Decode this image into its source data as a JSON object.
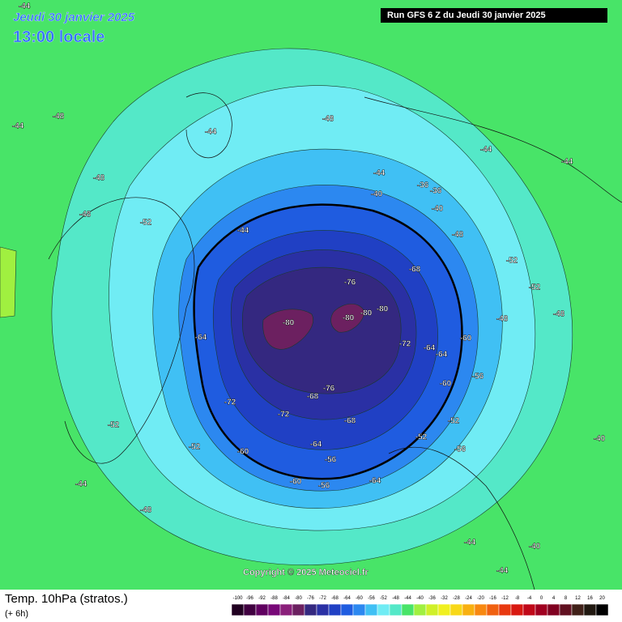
{
  "header": {
    "date": "Jeudi 30 janvier 2025",
    "time": "13:00 locale",
    "run": "Run GFS 6 Z du Jeudi 30 janvier 2025"
  },
  "copyright": "Copyright © 2025 Meteociel.fr",
  "footer": {
    "title": "Temp. 10hPa (stratos.)",
    "step": "(+ 6h)"
  },
  "contours": [
    -44,
    -48,
    -44,
    -48,
    -52,
    -48,
    -44,
    -44,
    -48,
    -44,
    -40,
    -36,
    -36,
    -40,
    -44,
    -44,
    -48,
    -52,
    -52,
    -48,
    -52,
    -56,
    -60,
    -56,
    -52,
    -64,
    -68,
    -76,
    -80,
    -80,
    -80,
    -80,
    -72,
    -64,
    -64,
    -60,
    -76,
    -72,
    -68,
    -60,
    -64,
    -56,
    -56,
    -60,
    -64,
    -52,
    -48,
    -44,
    -44,
    -40,
    -48,
    -44,
    -52,
    -40,
    -72,
    -68
  ],
  "legend": {
    "items": [
      {
        "value": -100,
        "color": "#200020"
      },
      {
        "value": -96,
        "color": "#400040"
      },
      {
        "value": -92,
        "color": "#600060"
      },
      {
        "value": -88,
        "color": "#780878"
      },
      {
        "value": -84,
        "color": "#8a1f7a"
      },
      {
        "value": -80,
        "color": "#6c2060"
      },
      {
        "value": -76,
        "color": "#342880"
      },
      {
        "value": -72,
        "color": "#2a30a4"
      },
      {
        "value": -68,
        "color": "#2040c4"
      },
      {
        "value": -64,
        "color": "#1f5ce0"
      },
      {
        "value": -60,
        "color": "#2c88f0"
      },
      {
        "value": -56,
        "color": "#40c0f4"
      },
      {
        "value": -52,
        "color": "#70ecf4"
      },
      {
        "value": -48,
        "color": "#54e8c8"
      },
      {
        "value": -44,
        "color": "#48e468"
      },
      {
        "value": -40,
        "color": "#a0f040"
      },
      {
        "value": -36,
        "color": "#d0f028"
      },
      {
        "value": -32,
        "color": "#f0f020"
      },
      {
        "value": -28,
        "color": "#f8d818"
      },
      {
        "value": -24,
        "color": "#f8b010"
      },
      {
        "value": -20,
        "color": "#f88810"
      },
      {
        "value": -16,
        "color": "#f06010"
      },
      {
        "value": -12,
        "color": "#e83810"
      },
      {
        "value": -8,
        "color": "#d81810"
      },
      {
        "value": -4,
        "color": "#c00818"
      },
      {
        "value": 0,
        "color": "#a00020"
      },
      {
        "value": 4,
        "color": "#800020"
      },
      {
        "value": 8,
        "color": "#601020"
      },
      {
        "value": 12,
        "color": "#402018"
      },
      {
        "value": 16,
        "color": "#201810"
      },
      {
        "value": 20,
        "color": "#000000"
      }
    ]
  }
}
